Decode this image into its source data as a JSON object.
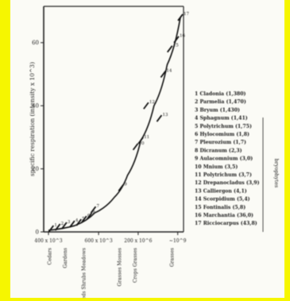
{
  "chart_data": {
    "type": "scatter",
    "title": "",
    "ylabel": "specific respiration (intensity x 10^3)",
    "xlabel": "",
    "ylim": [
      0,
      70
    ],
    "y_ticks": [
      "0",
      "20",
      "40",
      "60"
    ],
    "x_ticks": [
      "400 x 10^3",
      "600 x 10^3",
      "200 x 10^6",
      "~10^9"
    ],
    "x_categories": [
      "Cedars",
      "Gardens",
      "Weeds Shrubs Meadows",
      "Grasses Mosses",
      "Crops Grasses",
      "Grasses"
    ],
    "points": [
      {
        "x": 0.02,
        "y": 1,
        "label": "1"
      },
      {
        "x": 0.07,
        "y": 1.5,
        "label": "2"
      },
      {
        "x": 0.12,
        "y": 2,
        "label": "3"
      },
      {
        "x": 0.18,
        "y": 2.5,
        "label": "4"
      },
      {
        "x": 0.23,
        "y": 3,
        "label": "5"
      },
      {
        "x": 0.27,
        "y": 4,
        "label": "6"
      },
      {
        "x": 0.34,
        "y": 7,
        "label": "7"
      },
      {
        "x": 0.31,
        "y": 5,
        "label": "8"
      },
      {
        "x": 0.55,
        "y": 14,
        "label": "9"
      },
      {
        "x": 0.66,
        "y": 27,
        "label": "10"
      },
      {
        "x": 0.7,
        "y": 29,
        "label": "11"
      },
      {
        "x": 0.74,
        "y": 40,
        "label": "12"
      },
      {
        "x": 0.84,
        "y": 36,
        "label": "13"
      },
      {
        "x": 0.87,
        "y": 50,
        "label": "14"
      },
      {
        "x": 0.92,
        "y": 58,
        "label": "15"
      },
      {
        "x": 0.97,
        "y": 61,
        "label": "16"
      },
      {
        "x": 1.0,
        "y": 68,
        "label": "17"
      }
    ],
    "curve": [
      [
        0.0,
        0.5
      ],
      [
        0.2,
        2
      ],
      [
        0.35,
        6
      ],
      [
        0.5,
        11
      ],
      [
        0.6,
        18
      ],
      [
        0.7,
        29
      ],
      [
        0.8,
        40
      ],
      [
        0.9,
        53
      ],
      [
        1.0,
        68
      ]
    ],
    "legend": [
      "1 Cladonia (1,380)",
      "2 Parmelia (1,470)",
      "3 Bryum (1,430)",
      "4 Sphagnum (1,41)",
      "5 Polytrichum (1,75)",
      "6 Hylocomium (1,8)",
      "7 Pleurozium (1,7)",
      "8 Dicranum (2,3)",
      "9 Aulacomnium (3,0)",
      "10 Mnium (3,5)",
      "11 Polytrichum (3,7)",
      "12 Drepanocladus (3,9)",
      "13 Calliergon (4,1)",
      "14 Scorpidium (5,4)",
      "15 Fontinalis (5,8)",
      "16 Marchantia (36,0)",
      "17 Ricciocarpus (43,8)"
    ],
    "legend_group_label": "bryophytes"
  }
}
